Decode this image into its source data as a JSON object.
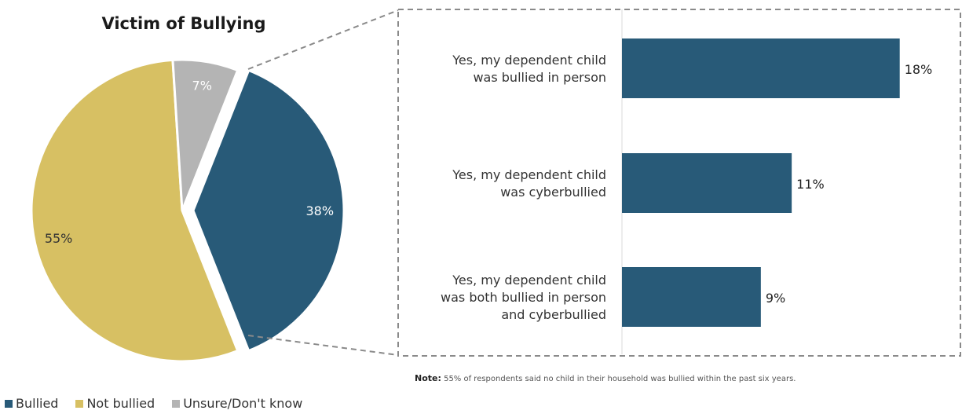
{
  "chart_data": [
    {
      "type": "pie",
      "title": "Victim of Bullying",
      "categories": [
        "Bullied",
        "Not bullied",
        "Unsure/Don't know"
      ],
      "values": [
        38,
        55,
        7
      ],
      "value_labels": [
        "38%",
        "55%",
        "7%"
      ],
      "colors": [
        "#285a78",
        "#d7c063",
        "#b4b4b4"
      ],
      "exploded_slice": "Bullied",
      "legend": "bottom-left"
    },
    {
      "type": "bar",
      "orientation": "horizontal",
      "title": "",
      "categories": [
        [
          "Yes, my dependent child",
          "was bullied in person"
        ],
        [
          "Yes, my dependent child",
          "was cyberbullied"
        ],
        [
          "Yes, my dependent child",
          "was both bullied in person",
          "and cyberbullied"
        ]
      ],
      "values": [
        18,
        11,
        9
      ],
      "value_labels": [
        "18%",
        "11%",
        "9%"
      ],
      "color": "#285a78",
      "xlim": [
        0,
        20
      ],
      "grid": false
    }
  ],
  "note": {
    "label": "Note:",
    "text": "55% of respondents said no child in their household was bullied within the past six years."
  },
  "legend": [
    {
      "label": "Bullied",
      "color": "#285a78"
    },
    {
      "label": "Not bullied",
      "color": "#d7c063"
    },
    {
      "label": "Unsure/Don't know",
      "color": "#b4b4b4"
    }
  ]
}
